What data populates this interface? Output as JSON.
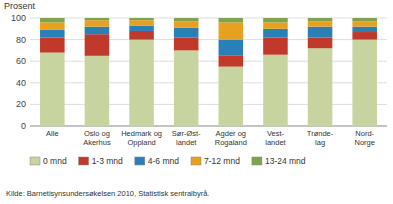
{
  "chart_data": {
    "type": "bar",
    "stacked": true,
    "y_label": "Prosent",
    "categories": [
      "Alle",
      "Oslo og\nAkerhus",
      "Hedmark og\nOppland",
      "Sør-Øst-\nlandet",
      "Agder og\nRogaland",
      "Vest-\nlandet",
      "Trønde-\nlag",
      "Nord-\nNorge"
    ],
    "series": [
      {
        "name": "0 mnd",
        "color": "#c8d4a0",
        "values": [
          68,
          65,
          80,
          70,
          55,
          66,
          72,
          80
        ]
      },
      {
        "name": "1-3 mnd",
        "color": "#c0392b",
        "values": [
          14,
          20,
          8,
          12,
          10,
          16,
          10,
          7
        ]
      },
      {
        "name": "4-6 mnd",
        "color": "#2980b9",
        "values": [
          7,
          7,
          5,
          9,
          15,
          8,
          10,
          5
        ]
      },
      {
        "name": "7-12 mnd",
        "color": "#e8a020",
        "values": [
          7,
          6,
          5,
          6,
          16,
          6,
          5,
          5
        ]
      },
      {
        "name": "13-24 mnd",
        "color": "#7da44a",
        "values": [
          4,
          2,
          2,
          3,
          4,
          4,
          3,
          3
        ]
      }
    ],
    "ylim": [
      0,
      100
    ],
    "yticks": [
      0,
      20,
      40,
      60,
      80,
      100
    ],
    "grid": true,
    "legend": "bottom",
    "annotations": [
      "Kilde: Barnetisynsundersøkelsen 2010, Statistisk sentralbyrå."
    ]
  }
}
